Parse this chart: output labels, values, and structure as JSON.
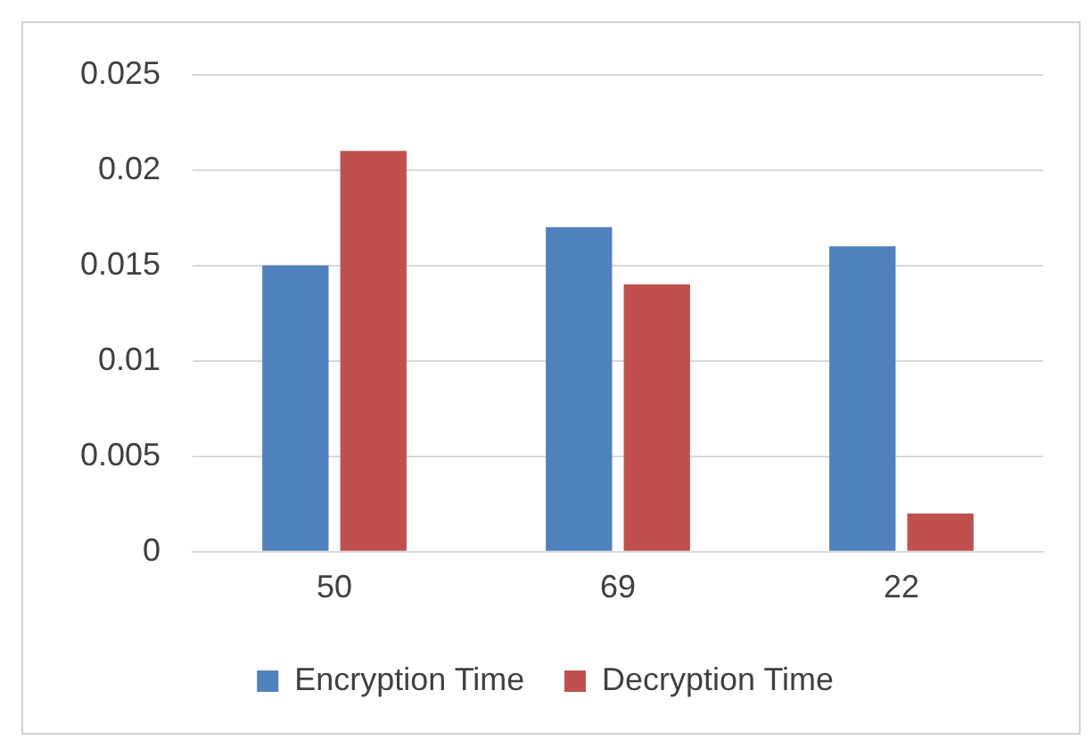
{
  "chart_data": {
    "type": "bar",
    "categories": [
      "50",
      "69",
      "22"
    ],
    "series": [
      {
        "name": "Encryption Time",
        "color": "#4f81bd",
        "values": [
          0.015,
          0.017,
          0.016
        ]
      },
      {
        "name": "Decryption Time",
        "color": "#c0504d",
        "values": [
          0.021,
          0.014,
          0.002
        ]
      }
    ],
    "ylim": [
      0,
      0.025
    ],
    "yticks": [
      0,
      0.005,
      0.01,
      0.015,
      0.02,
      0.025
    ],
    "grid": "y",
    "legend": "bottom"
  }
}
